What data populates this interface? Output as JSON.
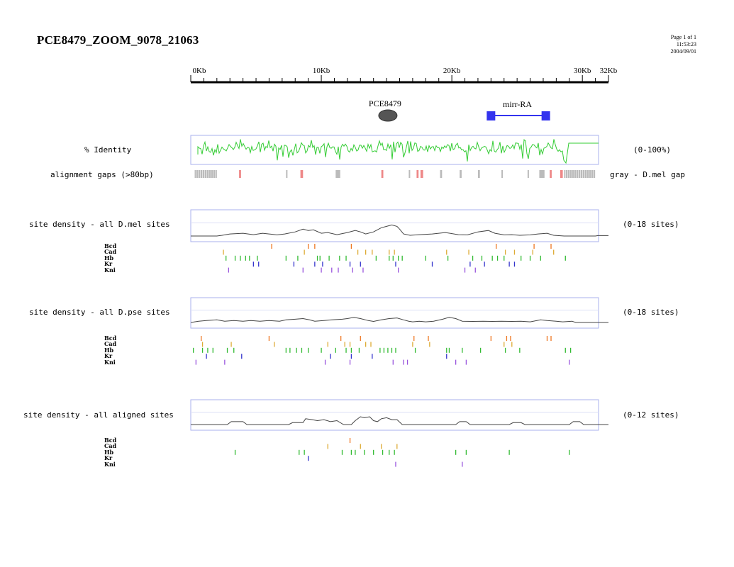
{
  "header": {
    "title": "PCE8479_ZOOM_9078_21063",
    "page": "Page 1 of 1",
    "time": "11:53:23",
    "date": "2004/09/01"
  },
  "ruler": {
    "labels": [
      {
        "text": "0Kb",
        "kb": 0
      },
      {
        "text": "10Kb",
        "kb": 10
      },
      {
        "text": "20Kb",
        "kb": 20
      },
      {
        "text": "30Kb",
        "kb": 30
      },
      {
        "text": "32Kb",
        "kb": 32
      }
    ],
    "max_kb": 32
  },
  "features": [
    {
      "name": "PCE8479",
      "type": "ellipse",
      "center_kb": 15.1,
      "color": "#555555"
    },
    {
      "name": "mirr-RA",
      "type": "gene",
      "start_kb": 23.0,
      "end_kb": 27.2,
      "color": "#3333ee"
    }
  ],
  "identity": {
    "label": "% Identity",
    "range": "(0-100%)",
    "color": "#33cc33"
  },
  "gaps": {
    "label": "alignment gaps (>80bp)",
    "legend": "gray - D.mel gap",
    "gray_color": "#bbbbbb",
    "red_color": "#ee8888",
    "items": [
      {
        "start_kb": 0.3,
        "end_kb": 2.0,
        "color": "gray"
      },
      {
        "start_kb": 3.7,
        "end_kb": 3.85,
        "color": "red"
      },
      {
        "start_kb": 7.3,
        "end_kb": 7.4,
        "color": "gray"
      },
      {
        "start_kb": 8.4,
        "end_kb": 8.6,
        "color": "red"
      },
      {
        "start_kb": 11.1,
        "end_kb": 11.45,
        "color": "gray"
      },
      {
        "start_kb": 14.6,
        "end_kb": 14.75,
        "color": "red"
      },
      {
        "start_kb": 16.7,
        "end_kb": 16.8,
        "color": "gray"
      },
      {
        "start_kb": 17.3,
        "end_kb": 17.45,
        "color": "red"
      },
      {
        "start_kb": 17.6,
        "end_kb": 17.8,
        "color": "red"
      },
      {
        "start_kb": 19.1,
        "end_kb": 19.25,
        "color": "gray"
      },
      {
        "start_kb": 20.6,
        "end_kb": 20.75,
        "color": "gray"
      },
      {
        "start_kb": 22.0,
        "end_kb": 22.15,
        "color": "gray"
      },
      {
        "start_kb": 23.8,
        "end_kb": 23.9,
        "color": "gray"
      },
      {
        "start_kb": 25.8,
        "end_kb": 25.9,
        "color": "gray"
      },
      {
        "start_kb": 26.7,
        "end_kb": 27.1,
        "color": "gray"
      },
      {
        "start_kb": 27.5,
        "end_kb": 27.65,
        "color": "red"
      },
      {
        "start_kb": 28.3,
        "end_kb": 28.5,
        "color": "red"
      },
      {
        "start_kb": 28.6,
        "end_kb": 31.0,
        "color": "gray"
      }
    ]
  },
  "factor_names": [
    "Bcd",
    "Cad",
    "Hb",
    "Kr",
    "Kni"
  ],
  "factor_colors": [
    "#ee7722",
    "#ddaa33",
    "#33bb33",
    "#3333cc",
    "#9955dd"
  ],
  "density_tracks": [
    {
      "label": "site density - all D.mel sites",
      "range": "(0-18 sites)",
      "max": 18,
      "profile": [
        [
          0,
          0
        ],
        [
          1,
          0
        ],
        [
          2,
          0
        ],
        [
          2.4,
          0.5
        ],
        [
          3,
          1.5
        ],
        [
          4,
          2
        ],
        [
          4.8,
          1
        ],
        [
          5.5,
          2
        ],
        [
          6,
          1.5
        ],
        [
          6.6,
          0.8
        ],
        [
          7.2,
          1.5
        ],
        [
          8,
          3
        ],
        [
          8.6,
          5
        ],
        [
          9,
          4
        ],
        [
          9.4,
          4.5
        ],
        [
          10,
          2
        ],
        [
          10.5,
          2.5
        ],
        [
          11.2,
          1
        ],
        [
          12,
          2.5
        ],
        [
          12.6,
          4
        ],
        [
          13,
          3
        ],
        [
          13.4,
          1.5
        ],
        [
          14,
          3
        ],
        [
          14.6,
          6
        ],
        [
          15,
          7
        ],
        [
          15.4,
          8
        ],
        [
          15.8,
          7
        ],
        [
          16,
          5
        ],
        [
          16.3,
          1.5
        ],
        [
          16.8,
          0.5
        ],
        [
          17.5,
          1
        ],
        [
          18.5,
          1.5
        ],
        [
          19.5,
          2.5
        ],
        [
          20.5,
          1
        ],
        [
          21.2,
          0.8
        ],
        [
          22,
          3
        ],
        [
          22.8,
          4
        ],
        [
          23.3,
          2
        ],
        [
          24,
          0.8
        ],
        [
          24.6,
          1
        ],
        [
          25.2,
          0.5
        ],
        [
          26,
          0.8
        ],
        [
          26.6,
          1.5
        ],
        [
          27.3,
          2
        ],
        [
          27.8,
          0.5
        ],
        [
          28.6,
          0
        ],
        [
          31,
          0
        ],
        [
          31.2,
          0.3
        ],
        [
          32,
          0.3
        ]
      ],
      "sites": {
        "Bcd": [
          6.2,
          9.0,
          9.5,
          12.3,
          23.4,
          26.3,
          27.6
        ],
        "Cad": [
          2.5,
          8.7,
          12.8,
          13.4,
          13.9,
          15.2,
          15.6,
          19.6,
          21.3,
          24.1,
          24.8,
          26.2,
          27.8
        ],
        "Hb": [
          2.7,
          3.4,
          3.8,
          4.2,
          4.5,
          5.1,
          7.3,
          8.2,
          9.7,
          9.9,
          10.6,
          11.4,
          11.9,
          14.2,
          15.2,
          15.5,
          15.9,
          16.2,
          18.0,
          19.7,
          21.6,
          22.3,
          23.1,
          23.5,
          24.0,
          25.3,
          26.0,
          26.8,
          28.7
        ],
        "Kr": [
          4.8,
          5.2,
          7.9,
          9.5,
          10.1,
          12.2,
          13.0,
          15.7,
          18.5,
          21.4,
          22.5,
          24.4,
          24.8
        ],
        "Kni": [
          2.9,
          8.6,
          10.0,
          10.8,
          11.3,
          12.4,
          13.2,
          15.9,
          21.0,
          21.8
        ]
      }
    },
    {
      "label": "site density - all D.pse sites",
      "range": "(0-18 sites)",
      "max": 18,
      "profile": [
        [
          0,
          0
        ],
        [
          0.6,
          1
        ],
        [
          1.2,
          1.5
        ],
        [
          2,
          2
        ],
        [
          2.6,
          1
        ],
        [
          3.3,
          1.5
        ],
        [
          4,
          1
        ],
        [
          4.6,
          1.5
        ],
        [
          5.3,
          1
        ],
        [
          6,
          1.5
        ],
        [
          6.8,
          1
        ],
        [
          7.3,
          2
        ],
        [
          8,
          2.5
        ],
        [
          8.6,
          3
        ],
        [
          9.1,
          2
        ],
        [
          9.5,
          1
        ],
        [
          10.2,
          1.5
        ],
        [
          10.8,
          2
        ],
        [
          11.6,
          2.5
        ],
        [
          12,
          3
        ],
        [
          12.5,
          4
        ],
        [
          13,
          3
        ],
        [
          13.6,
          1.5
        ],
        [
          14,
          0.8
        ],
        [
          14.6,
          2
        ],
        [
          15.2,
          3
        ],
        [
          15.8,
          3.5
        ],
        [
          16.3,
          2
        ],
        [
          16.7,
          1
        ],
        [
          17,
          0.5
        ],
        [
          17.5,
          1
        ],
        [
          18,
          0.5
        ],
        [
          18.6,
          1
        ],
        [
          19.3,
          2.5
        ],
        [
          19.8,
          4
        ],
        [
          20.3,
          3
        ],
        [
          20.8,
          1
        ],
        [
          21.6,
          0.8
        ],
        [
          22.4,
          1
        ],
        [
          23.1,
          0.8
        ],
        [
          23.8,
          1
        ],
        [
          24.6,
          0.8
        ],
        [
          25.3,
          1
        ],
        [
          26,
          0.5
        ],
        [
          26.8,
          2
        ],
        [
          27.3,
          1.5
        ],
        [
          28,
          1
        ],
        [
          28.5,
          0.5
        ],
        [
          29.2,
          1
        ],
        [
          29.5,
          0
        ],
        [
          32,
          0
        ]
      ],
      "sites": {
        "Bcd": [
          0.8,
          6.0,
          11.5,
          13.0,
          17.1,
          18.2,
          23.0,
          24.2,
          24.5,
          27.3,
          27.6
        ],
        "Cad": [
          0.9,
          3.1,
          6.4,
          10.5,
          11.8,
          12.2,
          13.4,
          13.8,
          17.0,
          18.3,
          24.0,
          24.6
        ],
        "Hb": [
          0.2,
          0.9,
          1.3,
          1.7,
          2.8,
          3.3,
          7.3,
          7.6,
          8.1,
          8.5,
          9.0,
          10.0,
          11.1,
          11.9,
          12.3,
          12.9,
          14.5,
          14.8,
          15.1,
          15.4,
          15.7,
          17.2,
          19.6,
          19.8,
          20.8,
          22.2,
          24.1,
          25.2,
          28.7,
          29.1
        ],
        "Kr": [
          1.2,
          3.9,
          10.7,
          12.3,
          13.9,
          19.6
        ],
        "Kni": [
          0.4,
          2.6,
          10.3,
          12.2,
          15.5,
          16.3,
          16.6,
          20.3,
          21.1,
          29.0
        ]
      }
    },
    {
      "label": "site density - all aligned sites",
      "range": "(0-12 sites)",
      "max": 12,
      "profile": [
        [
          0,
          0
        ],
        [
          2.8,
          0
        ],
        [
          3.1,
          1.5
        ],
        [
          4,
          1.5
        ],
        [
          4.3,
          0
        ],
        [
          7.5,
          0
        ],
        [
          7.8,
          1
        ],
        [
          8.6,
          1
        ],
        [
          8.8,
          3
        ],
        [
          9.3,
          2.5
        ],
        [
          9.7,
          2
        ],
        [
          10.2,
          2.5
        ],
        [
          10.7,
          1.5
        ],
        [
          11.2,
          2
        ],
        [
          11.7,
          0
        ],
        [
          12.3,
          0
        ],
        [
          12.6,
          2
        ],
        [
          13,
          4
        ],
        [
          13.3,
          3.5
        ],
        [
          13.7,
          4
        ],
        [
          14,
          2
        ],
        [
          14.3,
          1.5
        ],
        [
          14.6,
          3
        ],
        [
          15,
          3.5
        ],
        [
          15.4,
          2.5
        ],
        [
          15.8,
          2.5
        ],
        [
          16.2,
          0
        ],
        [
          20.3,
          0
        ],
        [
          20.6,
          1.5
        ],
        [
          21.1,
          1.5
        ],
        [
          21.4,
          0
        ],
        [
          24.4,
          0
        ],
        [
          24.7,
          1
        ],
        [
          25.3,
          1
        ],
        [
          25.6,
          0
        ],
        [
          29.0,
          0
        ],
        [
          29.3,
          1.5
        ],
        [
          29.8,
          1.5
        ],
        [
          30.1,
          0
        ],
        [
          32,
          0
        ]
      ],
      "sites": {
        "Bcd": [
          12.2
        ],
        "Cad": [
          10.5,
          13.0,
          14.6,
          15.8
        ],
        "Hb": [
          3.4,
          8.3,
          8.7,
          11.6,
          12.3,
          12.6,
          13.3,
          14.0,
          14.7,
          15.2,
          15.6,
          20.3,
          21.1,
          24.4,
          29.0
        ],
        "Kr": [
          9.0
        ],
        "Kni": [
          15.7,
          20.8
        ]
      }
    }
  ]
}
